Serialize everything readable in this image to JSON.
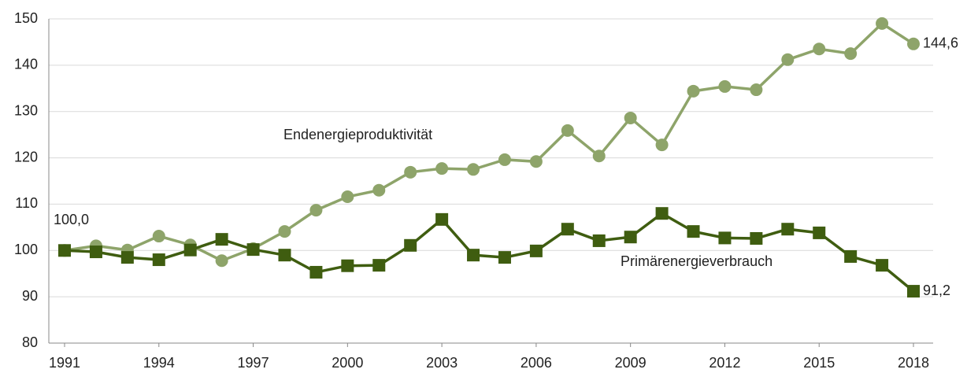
{
  "chart_data": {
    "type": "line",
    "x": [
      1991,
      1992,
      1993,
      1994,
      1995,
      1996,
      1997,
      1998,
      1999,
      2000,
      2001,
      2002,
      2003,
      2004,
      2005,
      2006,
      2007,
      2008,
      2009,
      2010,
      2011,
      2012,
      2013,
      2014,
      2015,
      2016,
      2017,
      2018
    ],
    "xlim": [
      1991,
      2018
    ],
    "xticks": [
      1991,
      1994,
      1997,
      2000,
      2003,
      2006,
      2009,
      2012,
      2015,
      2018
    ],
    "ylim": [
      80,
      150
    ],
    "yticks": [
      80,
      90,
      100,
      110,
      120,
      130,
      140,
      150
    ],
    "grid": true,
    "series": [
      {
        "name": "Endenergieproduktivität",
        "color": "#8ea46a",
        "marker": "circle",
        "values": [
          100.0,
          101.0,
          100.1,
          103.1,
          101.2,
          97.8,
          100.4,
          104.1,
          108.7,
          111.6,
          113.0,
          116.9,
          117.7,
          117.5,
          119.6,
          119.2,
          125.9,
          120.4,
          128.6,
          122.8,
          134.4,
          135.4,
          134.7,
          141.2,
          143.5,
          142.5,
          149.0,
          144.6
        ],
        "value_labels": [
          "100,0",
          null,
          null,
          null,
          null,
          null,
          null,
          null,
          null,
          null,
          null,
          null,
          null,
          null,
          null,
          null,
          null,
          null,
          null,
          null,
          null,
          null,
          null,
          null,
          null,
          null,
          null,
          "144,6"
        ]
      },
      {
        "name": "Primärenergieverbrauch",
        "color": "#3f5d10",
        "marker": "square",
        "values": [
          100.0,
          99.7,
          98.5,
          98.0,
          100.1,
          102.4,
          100.2,
          99.0,
          95.3,
          96.7,
          96.8,
          101.1,
          106.7,
          99.0,
          98.5,
          99.9,
          104.6,
          102.1,
          102.9,
          108.0,
          104.1,
          102.7,
          102.6,
          104.6,
          103.8,
          98.7,
          96.8,
          91.2
        ],
        "value_labels": [
          null,
          null,
          null,
          null,
          null,
          null,
          null,
          null,
          null,
          null,
          null,
          null,
          null,
          null,
          null,
          null,
          null,
          null,
          null,
          null,
          null,
          null,
          null,
          null,
          null,
          null,
          null,
          "91,2"
        ]
      }
    ]
  }
}
